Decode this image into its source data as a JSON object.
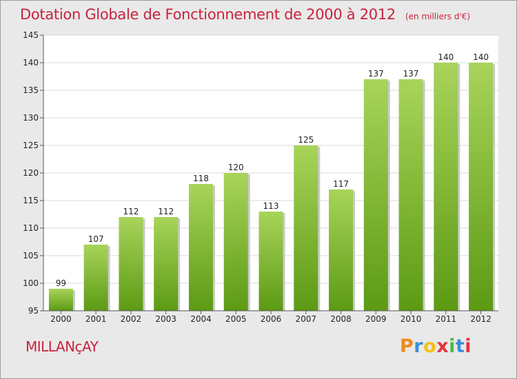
{
  "chart_data": {
    "type": "bar",
    "title": "Dotation Globale de Fonctionnement de 2000 à 2012",
    "unit_note": "(en milliers d'€)",
    "categories": [
      "2000",
      "2001",
      "2002",
      "2003",
      "2004",
      "2005",
      "2006",
      "2007",
      "2008",
      "2009",
      "2010",
      "2011",
      "2012"
    ],
    "values": [
      99,
      107,
      112,
      112,
      118,
      120,
      113,
      125,
      117,
      137,
      137,
      140,
      140
    ],
    "ylim": [
      95,
      145
    ],
    "yticks": [
      95,
      100,
      105,
      110,
      115,
      120,
      125,
      130,
      135,
      140,
      145
    ],
    "xlabel": "",
    "ylabel": "",
    "grid": true
  },
  "commune": "MILLANçAY",
  "brand": {
    "letters": [
      "P",
      "r",
      "o",
      "x",
      "i",
      "t",
      "i"
    ],
    "colors": [
      "#f08a1c",
      "#3b8fd4",
      "#f2c012",
      "#e8323c",
      "#4fb848",
      "#3b8fd4",
      "#e8323c"
    ]
  },
  "colors": {
    "bar_top": "#a8d45a",
    "bar_bottom": "#5c9a14",
    "title": "#c8233e"
  }
}
